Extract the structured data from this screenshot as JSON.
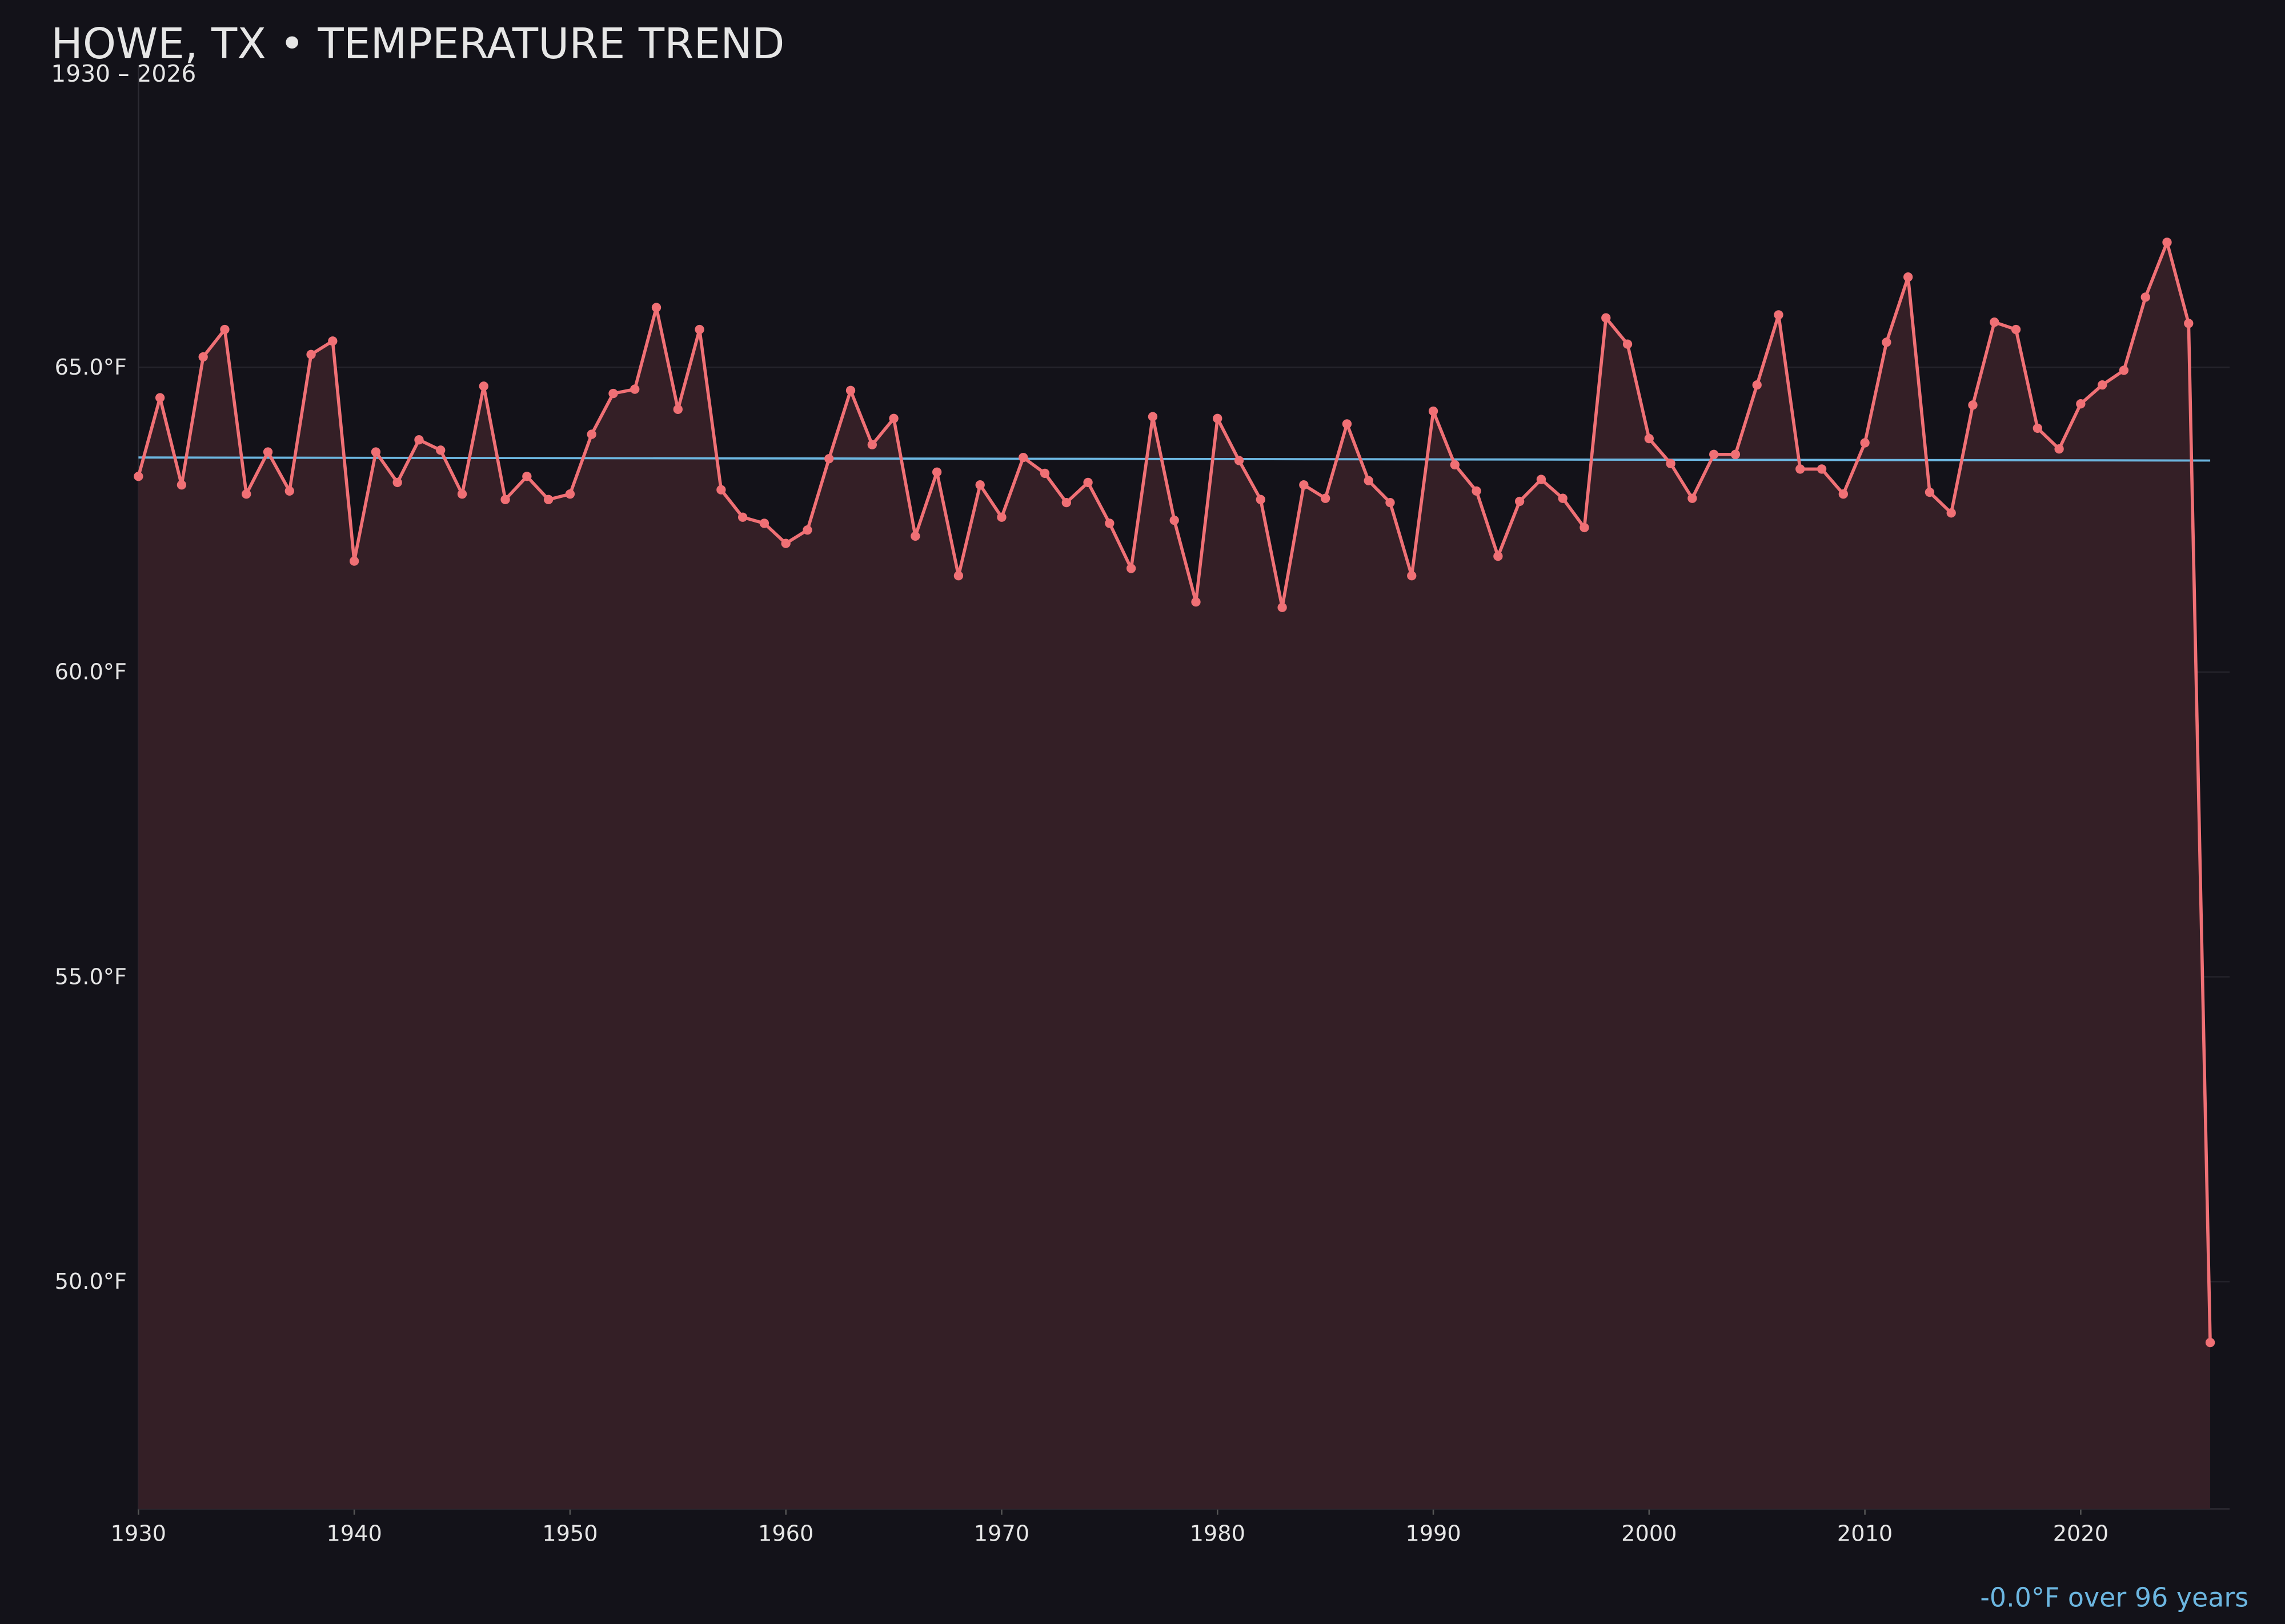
{
  "chart_data": {
    "type": "line",
    "title": "HOWE, TX • TEMPERATURE TREND",
    "subtitle": "1930 – 2026",
    "annotation": "-0.0°F over 96 years",
    "x": [
      1930,
      1931,
      1932,
      1933,
      1934,
      1935,
      1936,
      1937,
      1938,
      1939,
      1940,
      1941,
      1942,
      1943,
      1944,
      1945,
      1946,
      1947,
      1948,
      1949,
      1950,
      1951,
      1952,
      1953,
      1954,
      1955,
      1956,
      1957,
      1958,
      1959,
      1960,
      1961,
      1962,
      1963,
      1964,
      1965,
      1966,
      1967,
      1968,
      1969,
      1970,
      1971,
      1972,
      1973,
      1974,
      1975,
      1976,
      1977,
      1978,
      1979,
      1980,
      1981,
      1982,
      1983,
      1984,
      1985,
      1986,
      1987,
      1988,
      1989,
      1990,
      1991,
      1992,
      1993,
      1994,
      1995,
      1996,
      1997,
      1998,
      1999,
      2000,
      2001,
      2002,
      2003,
      2004,
      2005,
      2006,
      2007,
      2008,
      2009,
      2010,
      2011,
      2012,
      2013,
      2014,
      2015,
      2016,
      2017,
      2018,
      2019,
      2020,
      2021,
      2022,
      2023,
      2024,
      2025,
      2026
    ],
    "values": [
      63.21,
      64.5,
      63.07,
      65.17,
      65.62,
      62.92,
      63.61,
      62.97,
      65.21,
      65.43,
      61.82,
      63.61,
      63.11,
      63.81,
      63.64,
      62.92,
      64.69,
      62.83,
      63.21,
      62.83,
      62.92,
      63.9,
      64.57,
      64.64,
      65.98,
      64.31,
      65.62,
      62.99,
      62.54,
      62.44,
      62.11,
      62.33,
      63.5,
      64.62,
      63.73,
      64.16,
      62.23,
      63.28,
      61.58,
      63.07,
      62.54,
      63.52,
      63.26,
      62.78,
      63.11,
      62.44,
      61.7,
      64.19,
      62.49,
      61.15,
      64.16,
      63.47,
      62.83,
      61.06,
      63.07,
      62.85,
      64.07,
      63.14,
      62.78,
      61.58,
      64.28,
      63.4,
      62.97,
      61.9,
      62.8,
      63.16,
      62.85,
      62.37,
      65.81,
      65.38,
      63.83,
      63.42,
      62.85,
      63.57,
      63.57,
      64.71,
      65.86,
      63.33,
      63.33,
      62.92,
      63.76,
      65.41,
      66.48,
      62.95,
      62.61,
      64.38,
      65.74,
      65.62,
      64.0,
      63.66,
      64.4,
      64.71,
      64.95,
      66.15,
      67.05,
      65.72,
      49.0
    ],
    "color": "#f07075",
    "fill_color": "#341f26",
    "trend": {
      "x": [
        1930,
        2026
      ],
      "values": [
        63.52,
        63.47
      ],
      "color": "#6cb6e0"
    },
    "xlim": [
      1930,
      2026.9
    ],
    "ylim": [
      46.27,
      69.95
    ],
    "xticks": [
      1930,
      1940,
      1950,
      1960,
      1970,
      1980,
      1990,
      2000,
      2010,
      2020
    ],
    "yticks": [
      {
        "value": 50,
        "label": "50.0°F"
      },
      {
        "value": 55,
        "label": "55.0°F"
      },
      {
        "value": 60,
        "label": "60.0°F"
      },
      {
        "value": 65,
        "label": "65.0°F"
      }
    ],
    "grid": true
  }
}
